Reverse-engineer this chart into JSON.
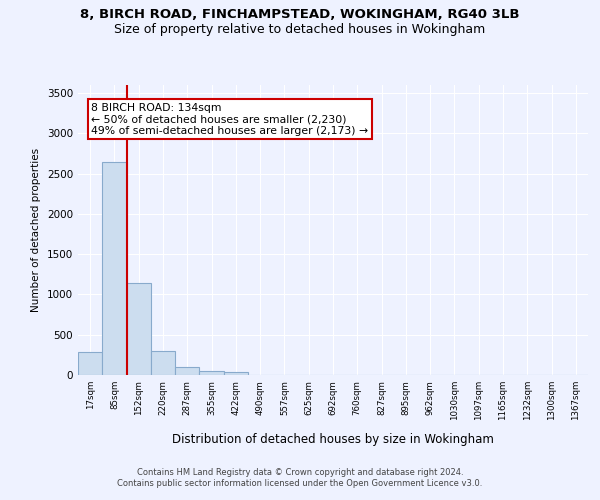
{
  "title_line1": "8, BIRCH ROAD, FINCHAMPSTEAD, WOKINGHAM, RG40 3LB",
  "title_line2": "Size of property relative to detached houses in Wokingham",
  "xlabel": "Distribution of detached houses by size in Wokingham",
  "ylabel": "Number of detached properties",
  "footnote": "Contains HM Land Registry data © Crown copyright and database right 2024.\nContains public sector information licensed under the Open Government Licence v3.0.",
  "bar_labels": [
    "17sqm",
    "85sqm",
    "152sqm",
    "220sqm",
    "287sqm",
    "355sqm",
    "422sqm",
    "490sqm",
    "557sqm",
    "625sqm",
    "692sqm",
    "760sqm",
    "827sqm",
    "895sqm",
    "962sqm",
    "1030sqm",
    "1097sqm",
    "1165sqm",
    "1232sqm",
    "1300sqm",
    "1367sqm"
  ],
  "bar_values": [
    290,
    2640,
    1140,
    300,
    100,
    55,
    35,
    0,
    0,
    0,
    0,
    0,
    0,
    0,
    0,
    0,
    0,
    0,
    0,
    0,
    0
  ],
  "bar_color": "#ccddef",
  "bar_edgecolor": "#88aacc",
  "bar_linewidth": 0.8,
  "property_line_x": 1.5,
  "property_line_color": "#cc0000",
  "annotation_text": "8 BIRCH ROAD: 134sqm\n← 50% of detached houses are smaller (2,230)\n49% of semi-detached houses are larger (2,173) →",
  "ylim": [
    0,
    3600
  ],
  "yticks": [
    0,
    500,
    1000,
    1500,
    2000,
    2500,
    3000,
    3500
  ],
  "background_color": "#eef2ff",
  "grid_color": "#ffffff",
  "title_fontsize": 9.5,
  "subtitle_fontsize": 9.0,
  "annotation_fontsize": 7.8
}
